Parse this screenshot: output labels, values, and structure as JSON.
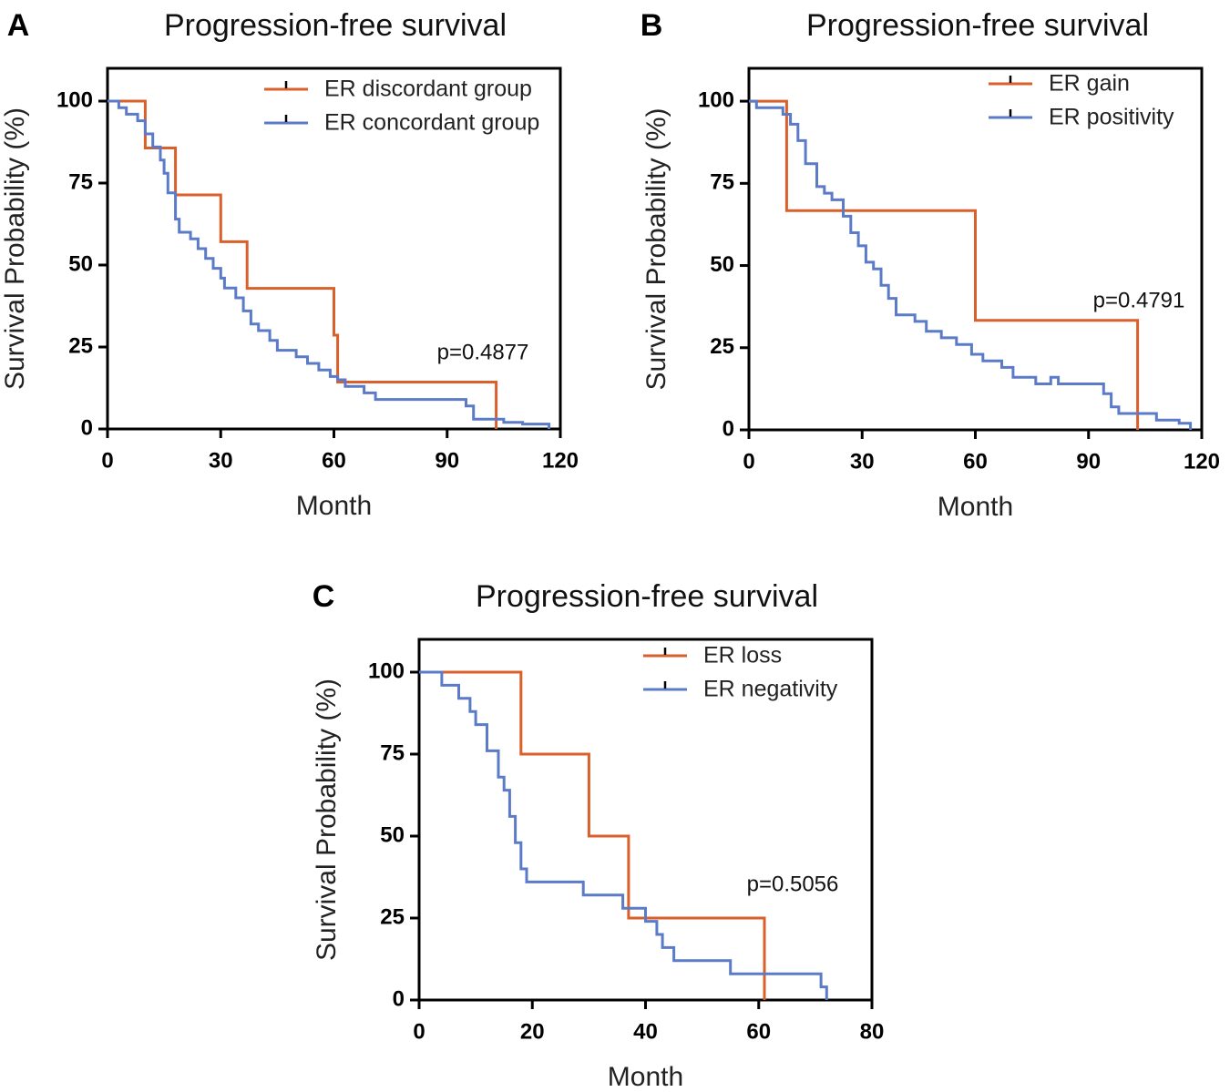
{
  "colors": {
    "orange": "#d95f2b",
    "blue": "#5b7bc8",
    "axis": "#000000"
  },
  "chart_data": [
    {
      "type": "line",
      "panel": "A",
      "title": "Progression-free survival",
      "xlabel": "Month",
      "ylabel": "Survival Probability (%)",
      "xlim": [
        0,
        120
      ],
      "ylim": [
        0,
        110
      ],
      "xticks": [
        0,
        30,
        60,
        90,
        120
      ],
      "yticks": [
        0,
        25,
        50,
        75,
        100
      ],
      "pvalue": "p=0.4877",
      "series": [
        {
          "name": "ER discordant group",
          "color": "orange",
          "step": [
            [
              0,
              100
            ],
            [
              10,
              100
            ],
            [
              10,
              85.7
            ],
            [
              18,
              85.7
            ],
            [
              18,
              71.4
            ],
            [
              30,
              71.4
            ],
            [
              30,
              57.1
            ],
            [
              37,
              57.1
            ],
            [
              37,
              42.9
            ],
            [
              60,
              42.9
            ],
            [
              60,
              28.6
            ],
            [
              61,
              28.6
            ],
            [
              61,
              14.3
            ],
            [
              103,
              14.3
            ],
            [
              103,
              0
            ]
          ]
        },
        {
          "name": "ER concordant group",
          "color": "blue",
          "step": [
            [
              0,
              100
            ],
            [
              3,
              100
            ],
            [
              3,
              98
            ],
            [
              5,
              98
            ],
            [
              5,
              96
            ],
            [
              8,
              96
            ],
            [
              8,
              94
            ],
            [
              10,
              94
            ],
            [
              10,
              90
            ],
            [
              12,
              90
            ],
            [
              12,
              86
            ],
            [
              14,
              86
            ],
            [
              14,
              82
            ],
            [
              15,
              82
            ],
            [
              15,
              78
            ],
            [
              16,
              78
            ],
            [
              16,
              72
            ],
            [
              18,
              72
            ],
            [
              18,
              64
            ],
            [
              19,
              64
            ],
            [
              19,
              60
            ],
            [
              22,
              60
            ],
            [
              22,
              58
            ],
            [
              24,
              58
            ],
            [
              24,
              55
            ],
            [
              26,
              55
            ],
            [
              26,
              52
            ],
            [
              28,
              52
            ],
            [
              28,
              49
            ],
            [
              30,
              49
            ],
            [
              30,
              46
            ],
            [
              31,
              46
            ],
            [
              31,
              43
            ],
            [
              34,
              43
            ],
            [
              34,
              40
            ],
            [
              36,
              40
            ],
            [
              36,
              36
            ],
            [
              38,
              36
            ],
            [
              38,
              32
            ],
            [
              40,
              32
            ],
            [
              40,
              30
            ],
            [
              43,
              30
            ],
            [
              43,
              27
            ],
            [
              45,
              27
            ],
            [
              45,
              24
            ],
            [
              50,
              24
            ],
            [
              50,
              22
            ],
            [
              53,
              22
            ],
            [
              53,
              20
            ],
            [
              56,
              20
            ],
            [
              56,
              18
            ],
            [
              59,
              18
            ],
            [
              59,
              16
            ],
            [
              61,
              16
            ],
            [
              61,
              15
            ],
            [
              63,
              15
            ],
            [
              63,
              13
            ],
            [
              68,
              13
            ],
            [
              68,
              11
            ],
            [
              71,
              11
            ],
            [
              71,
              9
            ],
            [
              78,
              9
            ],
            [
              78,
              9
            ],
            [
              95,
              9
            ],
            [
              95,
              7
            ],
            [
              97,
              7
            ],
            [
              97,
              3
            ],
            [
              105,
              3
            ],
            [
              105,
              2
            ],
            [
              110,
              2
            ],
            [
              110,
              1.5
            ],
            [
              117,
              1.5
            ],
            [
              117,
              0
            ]
          ]
        }
      ]
    },
    {
      "type": "line",
      "panel": "B",
      "title": "Progression-free survival",
      "xlabel": "Month",
      "ylabel": "Survival Probability (%)",
      "xlim": [
        0,
        120
      ],
      "ylim": [
        0,
        110
      ],
      "xticks": [
        0,
        30,
        60,
        90,
        120
      ],
      "yticks": [
        0,
        25,
        50,
        75,
        100
      ],
      "pvalue": "p=0.4791",
      "series": [
        {
          "name": "ER gain",
          "color": "orange",
          "step": [
            [
              0,
              100
            ],
            [
              10,
              100
            ],
            [
              10,
              66.7
            ],
            [
              60,
              66.7
            ],
            [
              60,
              33.3
            ],
            [
              103,
              33.3
            ],
            [
              103,
              0
            ]
          ]
        },
        {
          "name": "ER positivity",
          "color": "blue",
          "step": [
            [
              0,
              100
            ],
            [
              2,
              100
            ],
            [
              2,
              98
            ],
            [
              9,
              98
            ],
            [
              9,
              96
            ],
            [
              11,
              96
            ],
            [
              11,
              93
            ],
            [
              13,
              93
            ],
            [
              13,
              88
            ],
            [
              15,
              88
            ],
            [
              15,
              81
            ],
            [
              18,
              81
            ],
            [
              18,
              74
            ],
            [
              20,
              74
            ],
            [
              20,
              72
            ],
            [
              22,
              72
            ],
            [
              22,
              70
            ],
            [
              25,
              70
            ],
            [
              25,
              65
            ],
            [
              27,
              65
            ],
            [
              27,
              60
            ],
            [
              29,
              60
            ],
            [
              29,
              56
            ],
            [
              31,
              56
            ],
            [
              31,
              51
            ],
            [
              33,
              51
            ],
            [
              33,
              49
            ],
            [
              35,
              49
            ],
            [
              35,
              44
            ],
            [
              37,
              44
            ],
            [
              37,
              40
            ],
            [
              39,
              40
            ],
            [
              39,
              35
            ],
            [
              44,
              35
            ],
            [
              44,
              33
            ],
            [
              47,
              33
            ],
            [
              47,
              30
            ],
            [
              51,
              30
            ],
            [
              51,
              28
            ],
            [
              55,
              28
            ],
            [
              55,
              26
            ],
            [
              59,
              26
            ],
            [
              59,
              23
            ],
            [
              62,
              23
            ],
            [
              62,
              21
            ],
            [
              67,
              21
            ],
            [
              67,
              19
            ],
            [
              70,
              19
            ],
            [
              70,
              16
            ],
            [
              76,
              16
            ],
            [
              76,
              14
            ],
            [
              80,
              14
            ],
            [
              80,
              16
            ],
            [
              82,
              16
            ],
            [
              82,
              14
            ],
            [
              94,
              14
            ],
            [
              94,
              11
            ],
            [
              96,
              11
            ],
            [
              96,
              7
            ],
            [
              98,
              7
            ],
            [
              98,
              5
            ],
            [
              108,
              5
            ],
            [
              108,
              3
            ],
            [
              114,
              3
            ],
            [
              114,
              2
            ],
            [
              117,
              2
            ],
            [
              117,
              0
            ]
          ]
        }
      ]
    },
    {
      "type": "line",
      "panel": "C",
      "title": "Progression-free survival",
      "xlabel": "Month",
      "ylabel": "Survival Probability (%)",
      "xlim": [
        0,
        80
      ],
      "ylim": [
        0,
        110
      ],
      "xticks": [
        0,
        20,
        40,
        60,
        80
      ],
      "yticks": [
        0,
        25,
        50,
        75,
        100
      ],
      "pvalue": "p=0.5056",
      "series": [
        {
          "name": "ER loss",
          "color": "orange",
          "step": [
            [
              0,
              100
            ],
            [
              18,
              100
            ],
            [
              18,
              75
            ],
            [
              30,
              75
            ],
            [
              30,
              50
            ],
            [
              37,
              50
            ],
            [
              37,
              25
            ],
            [
              61,
              25
            ],
            [
              61,
              0
            ]
          ]
        },
        {
          "name": "ER negativity",
          "color": "blue",
          "step": [
            [
              0,
              100
            ],
            [
              4,
              100
            ],
            [
              4,
              96
            ],
            [
              7,
              96
            ],
            [
              7,
              92
            ],
            [
              9,
              92
            ],
            [
              9,
              88
            ],
            [
              10,
              88
            ],
            [
              10,
              84
            ],
            [
              12,
              84
            ],
            [
              12,
              76
            ],
            [
              14,
              76
            ],
            [
              14,
              68
            ],
            [
              15,
              68
            ],
            [
              15,
              64
            ],
            [
              16,
              64
            ],
            [
              16,
              56
            ],
            [
              17,
              56
            ],
            [
              17,
              48
            ],
            [
              18,
              48
            ],
            [
              18,
              40
            ],
            [
              19,
              40
            ],
            [
              19,
              36
            ],
            [
              29,
              36
            ],
            [
              29,
              32
            ],
            [
              36,
              32
            ],
            [
              36,
              28
            ],
            [
              40,
              28
            ],
            [
              40,
              24
            ],
            [
              42,
              24
            ],
            [
              42,
              20
            ],
            [
              43,
              20
            ],
            [
              43,
              16
            ],
            [
              45,
              16
            ],
            [
              45,
              12
            ],
            [
              55,
              12
            ],
            [
              55,
              8
            ],
            [
              71,
              8
            ],
            [
              71,
              4
            ],
            [
              72,
              4
            ],
            [
              72,
              0
            ]
          ]
        }
      ]
    }
  ]
}
